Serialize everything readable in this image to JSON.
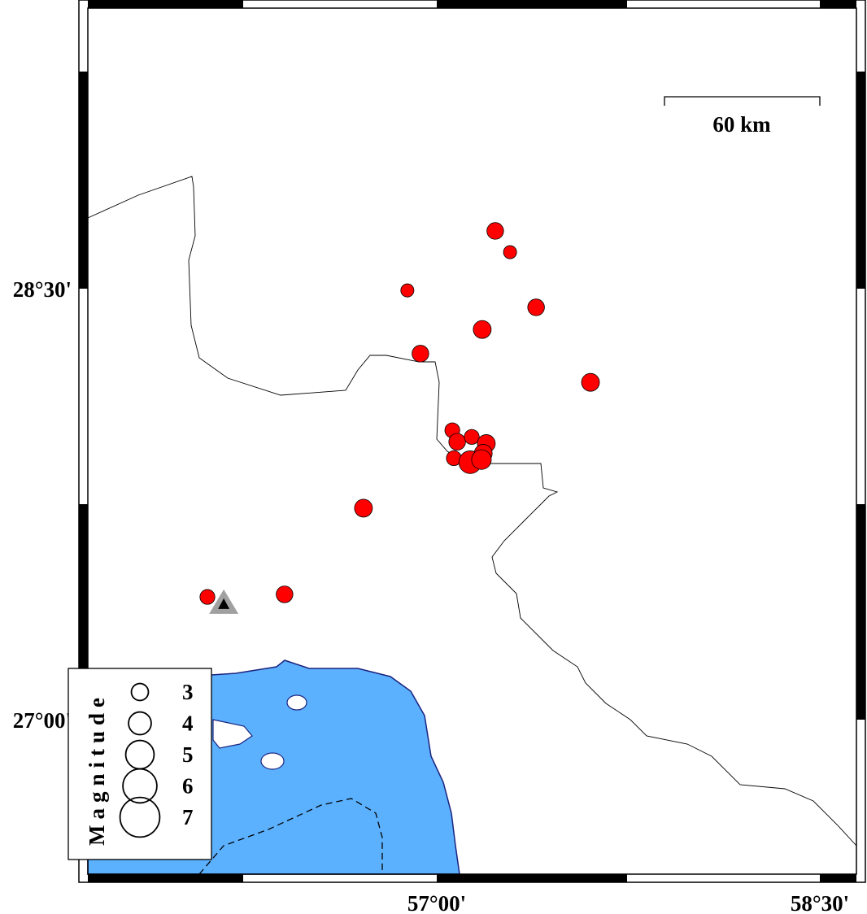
{
  "map": {
    "frame_labels": {
      "lat": [
        "28°30'",
        "27°00'"
      ],
      "lon": [
        "57°00'",
        "58°30'"
      ]
    },
    "scale_bar": {
      "label": "60 km"
    },
    "colors": {
      "sea": "#5cb1ff",
      "coast": "#1a237e",
      "event": "#ff0000",
      "station": "#000000",
      "station_halo": "#a0a0a0"
    },
    "events": [
      {
        "lon": 57.229,
        "lat": 28.701,
        "mag": 2.8
      },
      {
        "lon": 57.287,
        "lat": 28.627,
        "mag": 2.2
      },
      {
        "lon": 56.885,
        "lat": 28.494,
        "mag": 2.2
      },
      {
        "lon": 57.389,
        "lat": 28.435,
        "mag": 2.8
      },
      {
        "lon": 57.178,
        "lat": 28.358,
        "mag": 3.0
      },
      {
        "lon": 56.936,
        "lat": 28.274,
        "mag": 2.8
      },
      {
        "lon": 57.602,
        "lat": 28.174,
        "mag": 3.0
      },
      {
        "lon": 57.061,
        "lat": 28.007,
        "mag": 2.5
      },
      {
        "lon": 57.08,
        "lat": 27.967,
        "mag": 2.8
      },
      {
        "lon": 57.137,
        "lat": 27.984,
        "mag": 2.5
      },
      {
        "lon": 57.194,
        "lat": 27.961,
        "mag": 3.0
      },
      {
        "lon": 57.067,
        "lat": 27.91,
        "mag": 2.5
      },
      {
        "lon": 57.131,
        "lat": 27.896,
        "mag": 3.8
      },
      {
        "lon": 57.182,
        "lat": 27.927,
        "mag": 3.0
      },
      {
        "lon": 57.175,
        "lat": 27.905,
        "mag": 3.3
      },
      {
        "lon": 56.713,
        "lat": 27.736,
        "mag": 3.0
      },
      {
        "lon": 56.404,
        "lat": 27.436,
        "mag": 2.8
      },
      {
        "lon": 56.102,
        "lat": 27.427,
        "mag": 2.5
      }
    ],
    "station": {
      "lon": 56.166,
      "lat": 27.405,
      "icon": "triangle"
    },
    "legend": {
      "title": "Magnitude",
      "entries": [
        {
          "mag": 3,
          "label": "3"
        },
        {
          "mag": 4,
          "label": "4"
        },
        {
          "mag": 5,
          "label": "5"
        },
        {
          "mag": 6,
          "label": "6"
        },
        {
          "mag": 7,
          "label": "7"
        }
      ]
    }
  }
}
